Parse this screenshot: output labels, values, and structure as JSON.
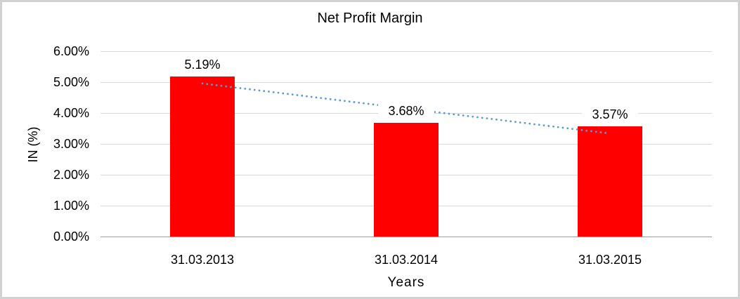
{
  "window": {
    "background": "#ffffff",
    "border_color": "#d2d2d2"
  },
  "chart_data": {
    "type": "bar",
    "title": "Net Profit Margin",
    "xlabel": "Years",
    "ylabel": "IN (%)",
    "categories": [
      "31.03.2013",
      "31.03.2014",
      "31.03.2015"
    ],
    "values": [
      5.19,
      3.68,
      3.57
    ],
    "data_labels": [
      "5.19%",
      "3.68%",
      "3.57%"
    ],
    "ytick_values": [
      0,
      1,
      2,
      3,
      4,
      5,
      6
    ],
    "ytick_labels": [
      "0.00%",
      "1.00%",
      "2.00%",
      "3.00%",
      "4.00%",
      "5.00%",
      "6.00%"
    ],
    "ylim": [
      0,
      6
    ],
    "grid": "horizontal",
    "legend": "none",
    "bar_color": "#ff0000",
    "gridline_color": "#d9d9d9",
    "axis_line_color": "#9e9e9e",
    "trendline": {
      "type": "linear",
      "style": "dotted",
      "color": "#5b9bd5"
    }
  }
}
